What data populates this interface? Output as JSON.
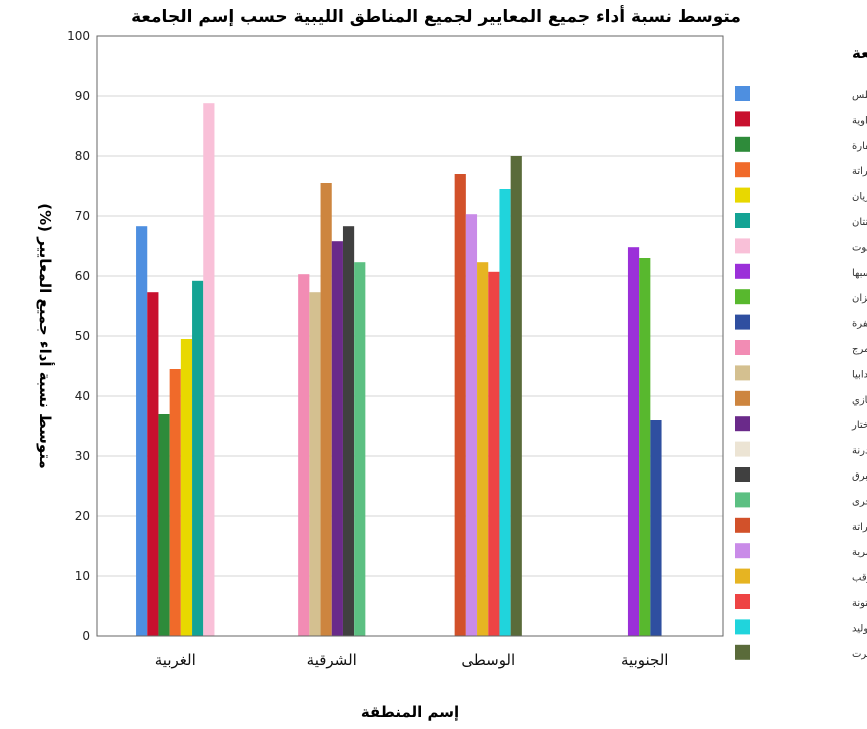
{
  "chart_data": {
    "type": "bar",
    "title": "متوسط نسبة أداء جميع المعايير لجميع المناطق الليبية حسب إسم الجامعة",
    "xlabel": "إسم المنطقة",
    "ylabel": "متوسط نسبة أداء جميع المعايير (%)",
    "ylim": [
      0,
      100
    ],
    "yticks": [
      0,
      10,
      20,
      30,
      40,
      50,
      60,
      70,
      80,
      90,
      100
    ],
    "grid": true,
    "legend_title": "إسم الجامعة",
    "legend_position": "right",
    "categories": [
      "الغربية",
      "الشرقية",
      "الوسطى",
      "الجنوبية"
    ],
    "series": [
      {
        "name": "جامعة طرابلس",
        "color": "#4e8fe0",
        "values": [
          68.3,
          null,
          null,
          null
        ]
      },
      {
        "name": "جامعة الزاوية",
        "color": "#c8102e",
        "values": [
          57.3,
          null,
          null,
          null
        ]
      },
      {
        "name": "جامعة الجفارة",
        "color": "#2e8b3a",
        "values": [
          37,
          null,
          null,
          null
        ]
      },
      {
        "name": "جامعة صبراتة",
        "color": "#f06a2a",
        "values": [
          44.5,
          null,
          null,
          null
        ]
      },
      {
        "name": "جامعة غريان",
        "color": "#e8d800",
        "values": [
          49.5,
          null,
          null,
          null
        ]
      },
      {
        "name": "جامعة الزنتان",
        "color": "#14a394",
        "values": [
          59.2,
          null,
          null,
          null
        ]
      },
      {
        "name": "جامعة نالوت",
        "color": "#f9c0d8",
        "values": [
          88.8,
          null,
          null,
          null
        ]
      },
      {
        "name": "جامعة سبها",
        "color": "#9b30d9",
        "values": [
          null,
          null,
          null,
          64.8
        ]
      },
      {
        "name": "جامعة فزان",
        "color": "#58b82e",
        "values": [
          null,
          null,
          null,
          63
        ]
      },
      {
        "name": "جامعة الكفرة",
        "color": "#2f4fa0",
        "values": [
          null,
          null,
          null,
          36
        ]
      },
      {
        "name": "جامعة المرج",
        "color": "#f28cb4",
        "values": [
          null,
          60.3,
          null,
          null
        ]
      },
      {
        "name": "جامعة إجدابيا",
        "color": "#d4c090",
        "values": [
          null,
          57.3,
          null,
          null
        ]
      },
      {
        "name": "جامعة بنغازي",
        "color": "#cd853f",
        "values": [
          null,
          75.5,
          null,
          null
        ]
      },
      {
        "name": "جامعة عمر المختار",
        "color": "#6a2a8a",
        "values": [
          null,
          65.8,
          null,
          null
        ]
      },
      {
        "name": "جامعة درنة",
        "color": "#ece4d4",
        "values": [
          null,
          null,
          null,
          null
        ]
      },
      {
        "name": "جامعة طبرق",
        "color": "#404040",
        "values": [
          null,
          68.3,
          null,
          null
        ]
      },
      {
        "name": "جامعة الأخرى",
        "color": "#5cc082",
        "values": [
          null,
          62.3,
          null,
          null
        ]
      },
      {
        "name": "جامعة مصراتة",
        "color": "#d2512a",
        "values": [
          null,
          null,
          77,
          null
        ]
      },
      {
        "name": "الجامعة الأسمرية",
        "color": "#c98be8",
        "values": [
          null,
          null,
          70.3,
          null
        ]
      },
      {
        "name": "جامعة المرقب",
        "color": "#e6b422",
        "values": [
          null,
          null,
          62.3,
          null
        ]
      },
      {
        "name": "جامعة الزيتونة",
        "color": "#ee4444",
        "values": [
          null,
          null,
          60.7,
          null
        ]
      },
      {
        "name": "جامعة بني وليد",
        "color": "#20d4dc",
        "values": [
          null,
          null,
          74.5,
          null
        ]
      },
      {
        "name": "جامعة سرت",
        "color": "#5a6b3a",
        "values": [
          null,
          null,
          80,
          null
        ]
      }
    ]
  }
}
